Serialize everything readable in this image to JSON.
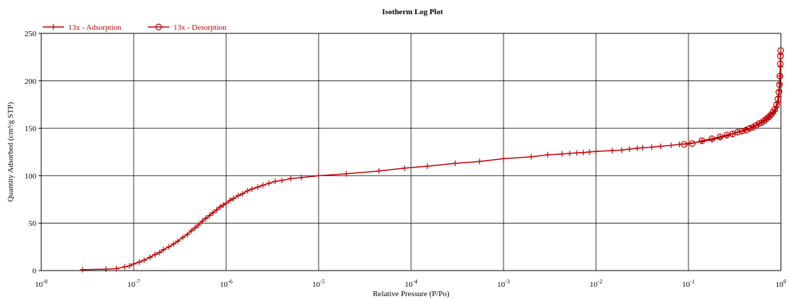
{
  "chart_data": {
    "type": "line",
    "title": "Isotherm Log Plot",
    "xlabel": "Relative Pressure (P/Po)",
    "ylabel": "Quantity Adsorbed (cm³/g STP)",
    "x_scale": "log",
    "xlim": [
      1e-08,
      1
    ],
    "ylim": [
      0,
      250
    ],
    "x_ticks": [
      {
        "value": 1e-08,
        "base": "10",
        "exp": "-8"
      },
      {
        "value": 1e-07,
        "base": "10",
        "exp": "-7"
      },
      {
        "value": 1e-06,
        "base": "10",
        "exp": "-6"
      },
      {
        "value": 1e-05,
        "base": "10",
        "exp": "-5"
      },
      {
        "value": 0.0001,
        "base": "10",
        "exp": "-4"
      },
      {
        "value": 0.001,
        "base": "10",
        "exp": "-3"
      },
      {
        "value": 0.01,
        "base": "10",
        "exp": "-2"
      },
      {
        "value": 0.1,
        "base": "10",
        "exp": "-1"
      },
      {
        "value": 1,
        "base": "10",
        "exp": "0"
      }
    ],
    "y_ticks": [
      0,
      50,
      100,
      150,
      200,
      250
    ],
    "grid": true,
    "legend_position": "top-left",
    "series": [
      {
        "name": "13x - Adsorption",
        "color": "#c00000",
        "marker": "plus",
        "x": [
          2.8e-08,
          5e-08,
          6.5e-08,
          8e-08,
          9e-08,
          1e-07,
          1.15e-07,
          1.3e-07,
          1.5e-07,
          1.7e-07,
          1.9e-07,
          2.1e-07,
          2.4e-07,
          2.7e-07,
          3e-07,
          3.4e-07,
          3.8e-07,
          4.2e-07,
          4.6e-07,
          5e-07,
          5.5e-07,
          6e-07,
          6.6e-07,
          7.2e-07,
          7.9e-07,
          8.6e-07,
          9.3e-07,
          1e-06,
          1.1e-06,
          1.2e-06,
          1.35e-06,
          1.5e-06,
          1.7e-06,
          1.9e-06,
          2.2e-06,
          2.5e-06,
          2.9e-06,
          3.4e-06,
          4e-06,
          5e-06,
          6.5e-06,
          1e-05,
          2e-05,
          4.5e-05,
          8.5e-05,
          0.00015,
          0.0003,
          0.00055,
          0.001,
          0.002,
          0.003,
          0.0043,
          0.0052,
          0.0062,
          0.0073,
          0.0085,
          0.01,
          0.015,
          0.019,
          0.023,
          0.028,
          0.032,
          0.04,
          0.05,
          0.065,
          0.08,
          0.1,
          0.14,
          0.18,
          0.22,
          0.26,
          0.3,
          0.34,
          0.38,
          0.42,
          0.46,
          0.5,
          0.54,
          0.58,
          0.62,
          0.66,
          0.7,
          0.74,
          0.78,
          0.82,
          0.86,
          0.9,
          0.93,
          0.95,
          0.965,
          0.975,
          0.985,
          0.99,
          0.995
        ],
        "y": [
          1,
          1.5,
          2,
          4,
          5,
          7,
          9,
          11,
          14,
          17,
          19,
          22,
          25,
          28,
          31,
          35,
          38,
          42,
          45,
          48,
          52,
          55,
          58,
          61,
          64,
          67,
          69,
          71,
          74,
          76,
          79,
          81,
          84,
          86,
          88,
          90,
          92,
          94,
          95,
          97,
          98,
          100,
          102,
          105,
          108,
          110,
          113,
          115,
          118,
          120,
          122,
          123,
          123.5,
          124,
          124.5,
          125,
          125.5,
          126.5,
          127,
          128,
          129,
          129.5,
          130,
          131,
          132,
          133,
          134,
          136,
          138,
          140,
          142,
          144,
          146,
          147,
          149,
          150,
          152,
          153,
          155,
          156,
          158,
          160,
          162,
          164,
          166,
          168,
          172,
          177,
          183,
          190,
          197,
          205,
          215,
          228
        ]
      },
      {
        "name": "13x - Desorption",
        "color": "#c00000",
        "marker": "circle",
        "x": [
          0.995,
          0.99,
          0.985,
          0.975,
          0.965,
          0.95,
          0.93,
          0.9,
          0.86,
          0.82,
          0.78,
          0.74,
          0.7,
          0.66,
          0.62,
          0.58,
          0.54,
          0.5,
          0.46,
          0.42,
          0.38,
          0.34,
          0.3,
          0.26,
          0.22,
          0.18,
          0.14,
          0.11,
          0.09
        ],
        "y": [
          232,
          226,
          218,
          205,
          196,
          188,
          181,
          175,
          170,
          167,
          164,
          162,
          160,
          158,
          156,
          155,
          153,
          151,
          150,
          148,
          147,
          146,
          144,
          143,
          141,
          139,
          137,
          134,
          133
        ]
      }
    ]
  }
}
